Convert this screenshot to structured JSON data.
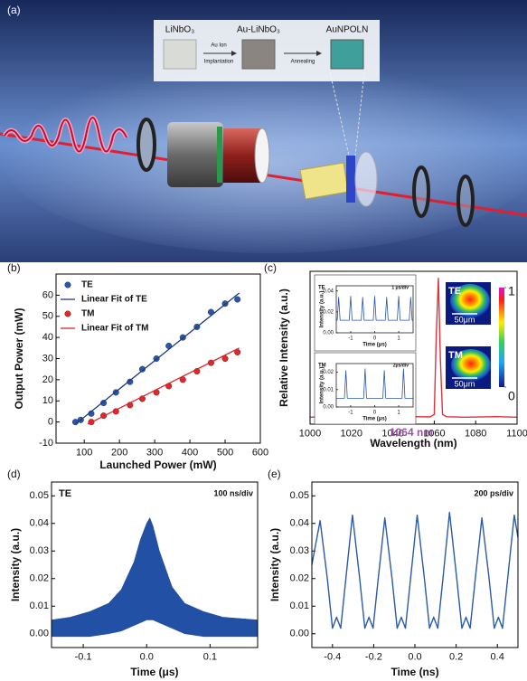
{
  "panel_a": {
    "label": "(a)",
    "samples": [
      "LiNbO₃",
      "Au-LiNbO₃",
      "AuNPOLN"
    ],
    "steps": [
      [
        "Au Ion",
        "Implantation"
      ],
      [
        "Annealing"
      ]
    ]
  },
  "chart_data": [
    {
      "type": "scatter",
      "label": "(b)",
      "xlabel": "Launched Power (mW)",
      "ylabel": "Output Power (mW)",
      "xlim": [
        20,
        600
      ],
      "xticks": [
        100,
        200,
        300,
        400,
        500,
        600
      ],
      "ylim": [
        -10,
        70
      ],
      "yticks": [
        -10,
        0,
        10,
        20,
        30,
        40,
        50,
        60
      ],
      "legend": "upper left",
      "series": [
        {
          "name": "TE",
          "mode": "markers",
          "color": "#2b56b0",
          "x": [
            75,
            90,
            120,
            155,
            190,
            230,
            265,
            305,
            340,
            380,
            420,
            460,
            500,
            535
          ],
          "values": [
            0,
            1,
            4,
            9,
            14,
            19,
            25,
            30,
            36,
            40,
            45,
            52,
            56,
            58
          ]
        },
        {
          "name": "Linear Fit of TE",
          "mode": "line",
          "color": "#1d3c7e",
          "x": [
            75,
            540
          ],
          "values": [
            -1,
            61
          ]
        },
        {
          "name": "TM",
          "mode": "markers",
          "color": "#e3262a",
          "x": [
            120,
            155,
            190,
            230,
            265,
            305,
            340,
            380,
            420,
            460,
            500,
            535
          ],
          "values": [
            0,
            3,
            5,
            8,
            11,
            14,
            17,
            20,
            24,
            28,
            30,
            33
          ]
        },
        {
          "name": "Linear Fit of TM",
          "mode": "line",
          "color": "#d7262b",
          "x": [
            110,
            540
          ],
          "values": [
            -1,
            35
          ]
        }
      ]
    },
    {
      "type": "line",
      "label": "(c)",
      "xlabel": "Wavelength (nm)",
      "ylabel": "Relative Intensity (a.u.)",
      "xlim": [
        1000,
        1100
      ],
      "xticks": [
        1000,
        1020,
        1040,
        1060,
        1080,
        1100
      ],
      "ylim": [
        -0.05,
        1.05
      ],
      "series": [
        {
          "color": "#d9353c",
          "x": [
            1000,
            1010,
            1020,
            1030,
            1040,
            1050,
            1058,
            1060,
            1061,
            1062,
            1063,
            1064,
            1066,
            1075,
            1090,
            1100
          ],
          "values": [
            0,
            0.005,
            0,
            0.004,
            0,
            0.004,
            0.002,
            0.02,
            0.6,
            1.0,
            0.4,
            0.02,
            0.003,
            0,
            0.004,
            0
          ]
        }
      ],
      "annotation": {
        "text": "1064 nm",
        "color": "#9b4fa8"
      },
      "images": [
        {
          "label": "TE",
          "scale": "50μm"
        },
        {
          "label": "TM",
          "scale": "50μm"
        }
      ],
      "colorbar": {
        "lim": [
          0,
          1
        ],
        "ticks": [
          1,
          0
        ]
      }
    },
    {
      "type": "line",
      "tag": "TE",
      "note": "1 μs/div",
      "xlabel": "Time (μs)",
      "ylabel": "Intensity (a.u.)",
      "xlim": [
        -1.6,
        1.6
      ],
      "xticks": [
        -1,
        0,
        1
      ],
      "ylim": [
        0,
        0.045
      ],
      "yticks": [
        {
          "value": 0,
          "label": "0.00"
        },
        {
          "value": 0.02,
          "label": "0.02"
        },
        {
          "value": 0.04,
          "label": "0.04"
        }
      ],
      "series": [
        {
          "color": "#2a55a8",
          "x": [
            -1.6,
            -1.56,
            -1.5,
            -1.44,
            -1.06,
            -1,
            -0.94,
            -0.56,
            -0.5,
            -0.44,
            -0.06,
            0,
            0.06,
            0.44,
            0.5,
            0.56,
            0.94,
            1,
            1.06,
            1.44,
            1.5,
            1.56,
            1.6
          ],
          "values": [
            0.012,
            0.012,
            0.034,
            0.012,
            0.012,
            0.035,
            0.012,
            0.012,
            0.034,
            0.012,
            0.012,
            0.035,
            0.012,
            0.012,
            0.034,
            0.012,
            0.012,
            0.035,
            0.012,
            0.012,
            0.034,
            0.012,
            0.012
          ]
        }
      ]
    },
    {
      "type": "line",
      "tag": "TM",
      "note": "2μs/div",
      "xlabel": "Time (μs)",
      "ylabel": "Intensity (a.u.)",
      "xlim": [
        -1.6,
        1.6
      ],
      "xticks": [
        -1,
        0,
        1
      ],
      "ylim": [
        0,
        0.025
      ],
      "yticks": [
        {
          "value": 0,
          "label": "0.00"
        },
        {
          "value": 0.01,
          "label": "0.01"
        },
        {
          "value": 0.02,
          "label": "0.02"
        }
      ],
      "series": [
        {
          "color": "#2a55a8",
          "x": [
            -1.6,
            -1.26,
            -1.2,
            -1.14,
            -0.46,
            -0.4,
            -0.34,
            0.34,
            0.4,
            0.46,
            1.14,
            1.2,
            1.26,
            1.6
          ],
          "values": [
            0.005,
            0.005,
            0.021,
            0.005,
            0.005,
            0.022,
            0.005,
            0.005,
            0.021,
            0.005,
            0.005,
            0.022,
            0.005,
            0.005
          ]
        }
      ]
    },
    {
      "type": "band",
      "label": "(d)",
      "tag": "TE",
      "note": "100 ns/div",
      "xlabel": "Time (μs)",
      "ylabel": "Intensity (a.u.)",
      "xlim": [
        -0.15,
        0.175
      ],
      "xticks": [
        {
          "value": -0.1,
          "label": "-0.1"
        },
        {
          "value": 0,
          "label": "0.0"
        },
        {
          "value": 0.1,
          "label": "0.1"
        }
      ],
      "ylim": [
        -0.005,
        0.055
      ],
      "yticks": [
        {
          "value": 0,
          "label": "0.00"
        },
        {
          "value": 0.01,
          "label": "0.01"
        },
        {
          "value": 0.02,
          "label": "0.02"
        },
        {
          "value": 0.03,
          "label": "0.03"
        },
        {
          "value": 0.04,
          "label": "0.04"
        },
        {
          "value": 0.05,
          "label": "0.05"
        }
      ],
      "color": "#2250a4",
      "x": [
        -0.15,
        -0.12,
        -0.09,
        -0.06,
        -0.04,
        -0.02,
        -0.01,
        0,
        0.005,
        0.01,
        0.02,
        0.04,
        0.06,
        0.09,
        0.12,
        0.175
      ],
      "series": [
        {
          "values": [
            0.005,
            0.006,
            0.008,
            0.011,
            0.016,
            0.026,
            0.034,
            0.04,
            0.042,
            0.039,
            0.03,
            0.017,
            0.011,
            0.008,
            0.006,
            0.005
          ]
        },
        {
          "values": [
            -0.001,
            -0.001,
            -0.001,
            0,
            0.001,
            0.003,
            0.004,
            0.005,
            0.005,
            0.005,
            0.004,
            0.002,
            0,
            -0.001,
            -0.001,
            -0.001
          ]
        }
      ]
    },
    {
      "type": "line",
      "label": "(e)",
      "note": "200 ps/div",
      "xlabel": "Time (ns)",
      "ylabel": "Intensity (a.u.)",
      "xlim": [
        -0.5,
        0.5
      ],
      "xticks": [
        {
          "value": -0.4,
          "label": "-0.4"
        },
        {
          "value": -0.2,
          "label": "-0.2"
        },
        {
          "value": 0,
          "label": "0.0"
        },
        {
          "value": 0.2,
          "label": "0.2"
        },
        {
          "value": 0.4,
          "label": "0.4"
        }
      ],
      "ylim": [
        -0.005,
        0.055
      ],
      "yticks": [
        {
          "value": 0,
          "label": "0.00"
        },
        {
          "value": 0.01,
          "label": "0.01"
        },
        {
          "value": 0.02,
          "label": "0.02"
        },
        {
          "value": 0.03,
          "label": "0.03"
        },
        {
          "value": 0.04,
          "label": "0.04"
        },
        {
          "value": 0.05,
          "label": "0.05"
        }
      ],
      "series": [
        {
          "color": "#2a5aa8",
          "x": [
            -0.5,
            -0.46,
            -0.425,
            -0.4,
            -0.38,
            -0.36,
            -0.335,
            -0.303,
            -0.268,
            -0.243,
            -0.223,
            -0.203,
            -0.178,
            -0.146,
            -0.111,
            -0.086,
            -0.066,
            -0.046,
            -0.021,
            0.011,
            0.046,
            0.071,
            0.091,
            0.111,
            0.136,
            0.168,
            0.203,
            0.228,
            0.248,
            0.268,
            0.293,
            0.325,
            0.36,
            0.385,
            0.405,
            0.425,
            0.45,
            0.482,
            0.5
          ],
          "values": [
            0.025,
            0.041,
            0.02,
            0.002,
            0.006,
            0.002,
            0.02,
            0.043,
            0.02,
            0.002,
            0.006,
            0.002,
            0.02,
            0.042,
            0.02,
            0.002,
            0.006,
            0.002,
            0.02,
            0.043,
            0.02,
            0.002,
            0.006,
            0.002,
            0.02,
            0.044,
            0.02,
            0.002,
            0.006,
            0.002,
            0.02,
            0.042,
            0.02,
            0.002,
            0.006,
            0.002,
            0.02,
            0.043,
            0.035
          ]
        }
      ]
    }
  ]
}
